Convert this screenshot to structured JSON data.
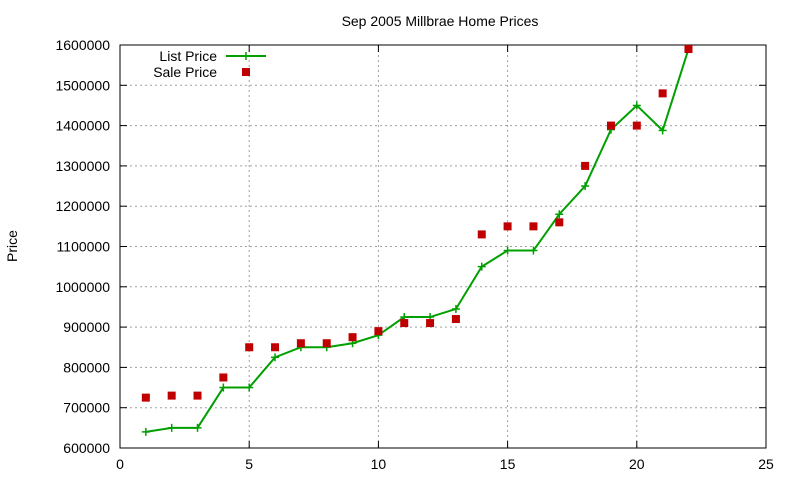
{
  "chart_data": {
    "type": "line",
    "title": "Sep 2005 Millbrae Home Prices",
    "xlabel": "",
    "ylabel": "Price",
    "xlim": [
      0,
      25
    ],
    "ylim": [
      600000,
      1600000
    ],
    "x_ticks": [
      0,
      5,
      10,
      15,
      20,
      25
    ],
    "y_ticks": [
      600000,
      700000,
      800000,
      900000,
      1000000,
      1100000,
      1200000,
      1300000,
      1400000,
      1500000,
      1600000
    ],
    "grid": true,
    "legend_position": "top-left",
    "series": [
      {
        "name": "List Price",
        "style": "linespoints",
        "color": "#00a000",
        "marker": "plus",
        "x": [
          1,
          2,
          3,
          4,
          5,
          6,
          7,
          8,
          9,
          10,
          11,
          12,
          13,
          14,
          15,
          16,
          17,
          18,
          19,
          20,
          21,
          22
        ],
        "values": [
          640000,
          650000,
          650000,
          750000,
          750000,
          825000,
          850000,
          850000,
          860000,
          880000,
          925000,
          925000,
          945000,
          1050000,
          1090000,
          1090000,
          1180000,
          1250000,
          1390000,
          1450000,
          1388000,
          1590000
        ]
      },
      {
        "name": "Sale Price",
        "style": "points",
        "color": "#c00000",
        "marker": "square",
        "x": [
          1,
          2,
          3,
          4,
          5,
          6,
          7,
          8,
          9,
          10,
          11,
          12,
          13,
          14,
          15,
          16,
          17,
          18,
          19,
          20,
          21,
          22
        ],
        "values": [
          725000,
          730000,
          730000,
          775000,
          850000,
          850000,
          860000,
          860000,
          875000,
          890000,
          910000,
          910000,
          920000,
          1130000,
          1150000,
          1150000,
          1160000,
          1300000,
          1400000,
          1400000,
          1480000,
          1590000
        ]
      }
    ]
  }
}
